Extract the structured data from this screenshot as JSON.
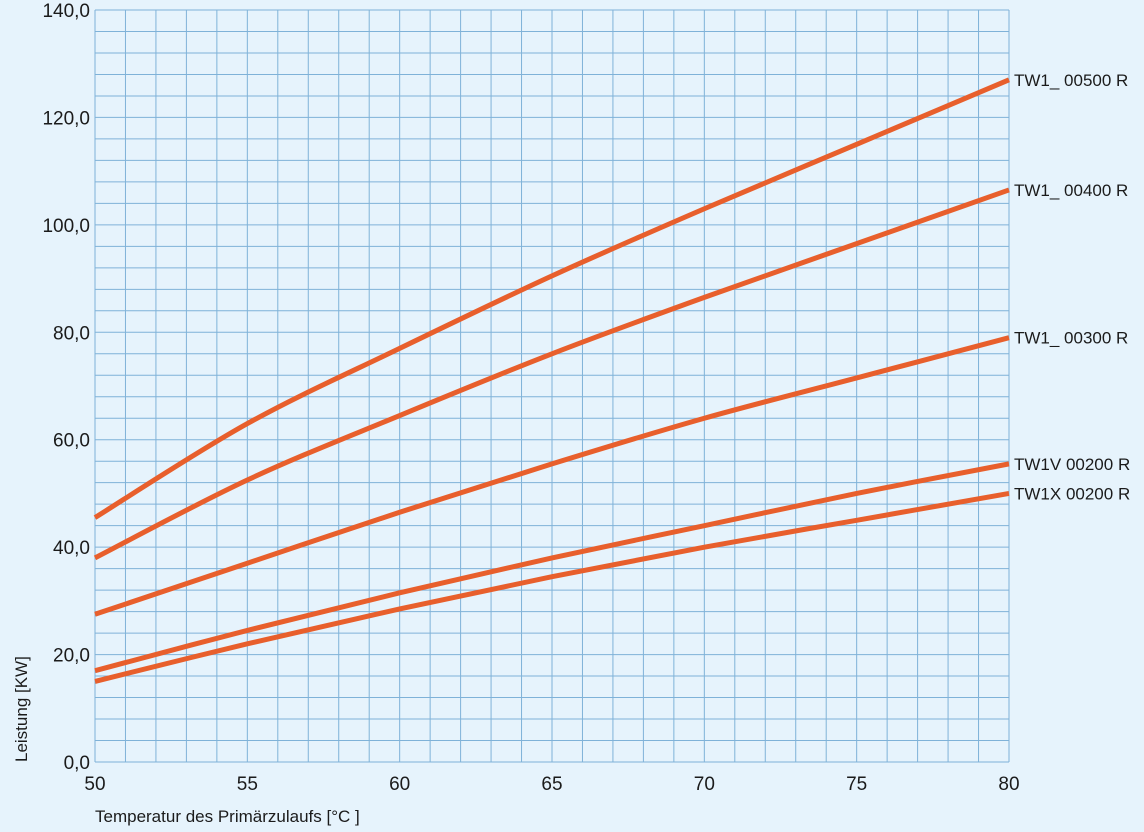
{
  "chart_data": {
    "type": "line",
    "title": "",
    "xlabel": "Temperatur des Primärzulaufs [°C ]",
    "ylabel": "Leistung [KW]",
    "xlim": [
      50,
      80
    ],
    "ylim": [
      0,
      140
    ],
    "x_ticks": [
      "50",
      "55",
      "60",
      "65",
      "70",
      "75",
      "80"
    ],
    "y_ticks": [
      "0,0",
      "20,0",
      "40,0",
      "60,0",
      "80,0",
      "100,0",
      "120,0",
      "140,0"
    ],
    "grid": true,
    "legend": "labels at right end of each line",
    "series": [
      {
        "name": "TW1_ 00500 R",
        "x": [
          50,
          55,
          60,
          65,
          70,
          75,
          80
        ],
        "values": [
          45.5,
          63.0,
          77.0,
          90.5,
          103.0,
          115.0,
          127.0
        ]
      },
      {
        "name": "TW1_ 00400 R",
        "x": [
          50,
          55,
          60,
          65,
          70,
          75,
          80
        ],
        "values": [
          38.0,
          52.5,
          64.5,
          76.0,
          86.5,
          96.5,
          106.5
        ]
      },
      {
        "name": "TW1_ 00300 R",
        "x": [
          50,
          55,
          60,
          65,
          70,
          75,
          80
        ],
        "values": [
          27.5,
          37.0,
          46.5,
          55.5,
          64.0,
          71.5,
          79.0
        ]
      },
      {
        "name": "TW1V 00200 R",
        "x": [
          50,
          55,
          60,
          65,
          70,
          75,
          80
        ],
        "values": [
          17.0,
          24.5,
          31.5,
          38.0,
          44.0,
          50.0,
          55.5
        ]
      },
      {
        "name": "TW1X 00200 R",
        "x": [
          50,
          55,
          60,
          65,
          70,
          75,
          80
        ],
        "values": [
          15.0,
          22.0,
          28.5,
          34.5,
          40.0,
          45.0,
          50.0
        ]
      }
    ],
    "colors": {
      "line": "#e85f2c",
      "grid": "#7fb2d8",
      "background": "#e6f3fc"
    }
  }
}
